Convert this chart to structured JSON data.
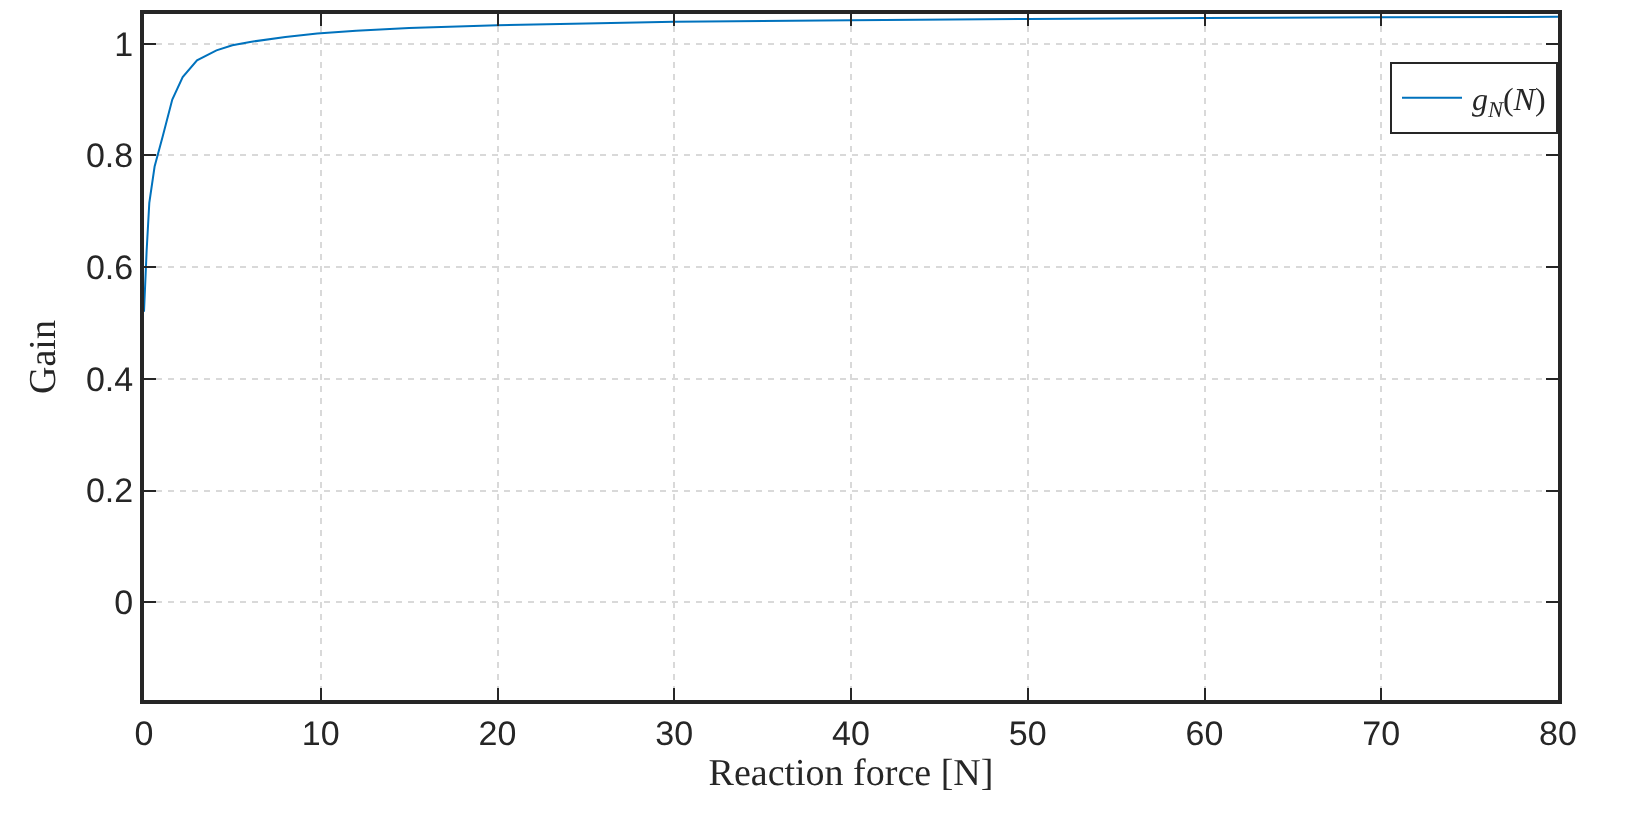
{
  "chart_data": {
    "type": "line",
    "xlabel": "Reaction force [N]",
    "ylabel": "Gain",
    "series": [
      {
        "name": "g$_{N}$(N)",
        "color": "#0072bd",
        "x": [
          0,
          0.15,
          0.3,
          0.6,
          1.06,
          1.6,
          2.19,
          3,
          4.1,
          5,
          6,
          8,
          9.8,
          12,
          15,
          20,
          25,
          30,
          40,
          50,
          60,
          70,
          80
        ],
        "values": [
          0.52,
          0.63,
          0.715,
          0.78,
          0.834,
          0.9,
          0.94,
          0.97,
          0.988,
          0.997,
          1.003,
          1.012,
          1.018,
          1.023,
          1.028,
          1.033,
          1.036,
          1.039,
          1.042,
          1.044,
          1.046,
          1.047,
          1.048
        ]
      }
    ],
    "xlim": [
      0,
      80
    ],
    "xticks": [
      0,
      10,
      20,
      30,
      40,
      50,
      60,
      70,
      80
    ],
    "ylim": [
      -0.175,
      1.053
    ],
    "yticks": [
      0,
      0.2,
      0.4,
      0.6,
      0.8,
      1
    ],
    "grid": true,
    "legend": "top right",
    "marker": "none",
    "line_style": "solid"
  }
}
